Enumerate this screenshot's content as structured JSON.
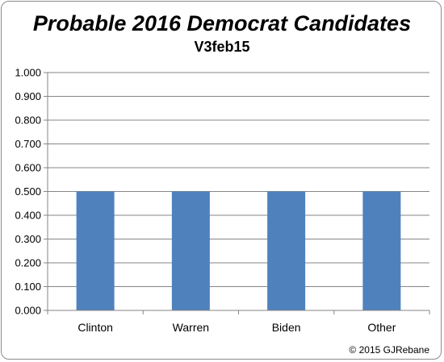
{
  "chart_data": {
    "type": "bar",
    "title": "Probable 2016 Democrat Candidates",
    "subtitle": "V3feb15",
    "categories": [
      "Clinton",
      "Warren",
      "Biden",
      "Other"
    ],
    "values": [
      0.5,
      0.5,
      0.5,
      0.5
    ],
    "ylim": [
      0,
      1
    ],
    "yticks": [
      "0.000",
      "0.100",
      "0.200",
      "0.300",
      "0.400",
      "0.500",
      "0.600",
      "0.700",
      "0.800",
      "0.900",
      "1.000"
    ],
    "xlabel": "",
    "ylabel": "",
    "grid": true,
    "legend": "none",
    "bar_color": "#4f81bd",
    "grid_color": "#868686"
  },
  "footer": {
    "copyright": "© 2015 GJRebane"
  }
}
